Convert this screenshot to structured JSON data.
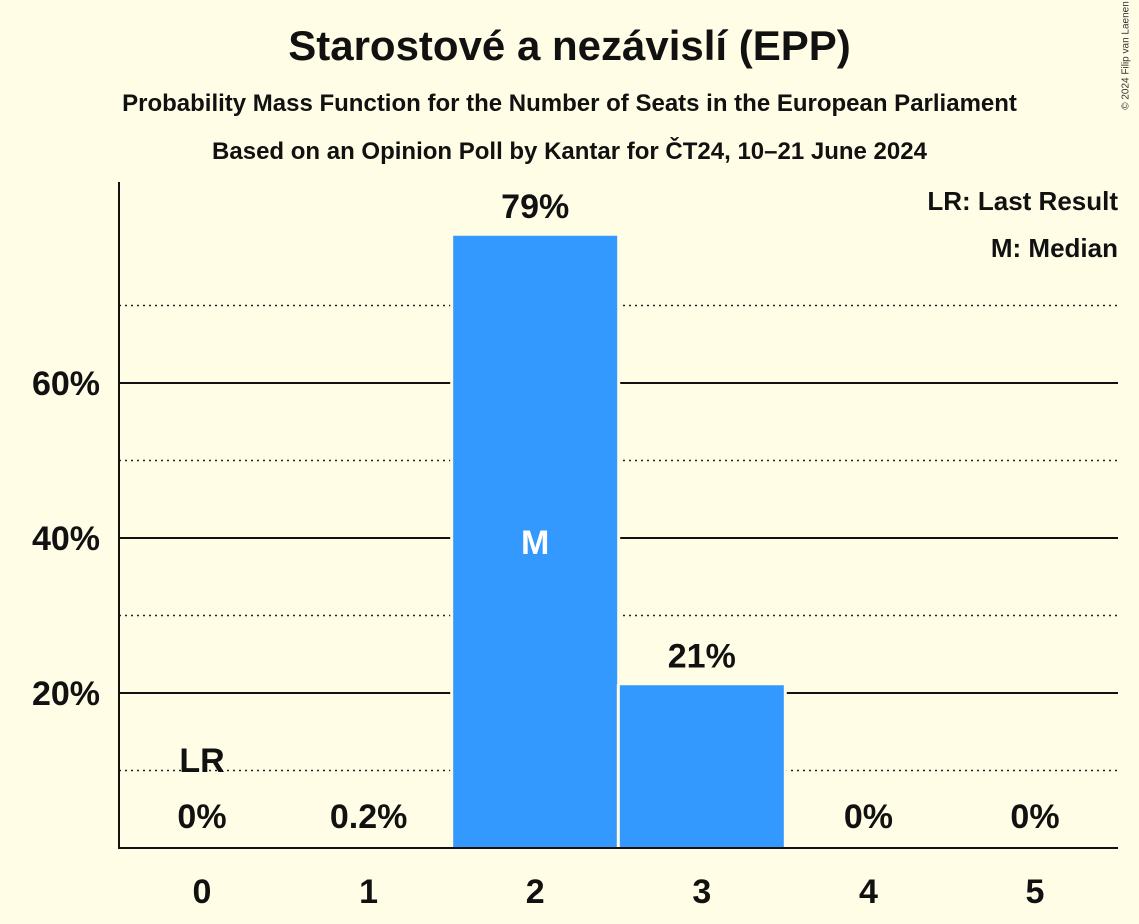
{
  "title": "Starostové a nezávislí (EPP)",
  "subtitle1": "Probability Mass Function for the Number of Seats in the European Parliament",
  "subtitle2": "Based on an Opinion Poll by Kantar for ČT24, 10–21 June 2024",
  "copyright": "© 2024 Filip van Laenen",
  "chart_data": {
    "type": "bar",
    "categories": [
      "0",
      "1",
      "2",
      "3",
      "4",
      "5"
    ],
    "values": [
      0,
      0.2,
      79,
      21,
      0,
      0
    ],
    "value_labels": [
      "0%",
      "0.2%",
      "79%",
      "21%",
      "0%",
      "0%"
    ],
    "ylim": [
      0,
      86
    ],
    "yticks": [
      20,
      40,
      60
    ],
    "ytick_labels": [
      "20%",
      "40%",
      "60%"
    ],
    "minor_gridlines": [
      10,
      30,
      50,
      70
    ],
    "bar_color": "#3399ff",
    "last_result_category": "0",
    "last_result_marker": "LR",
    "median_category": "2",
    "median_marker": "M",
    "legend": [
      "LR: Last Result",
      "M: Median"
    ],
    "legend_position": "top-right"
  }
}
